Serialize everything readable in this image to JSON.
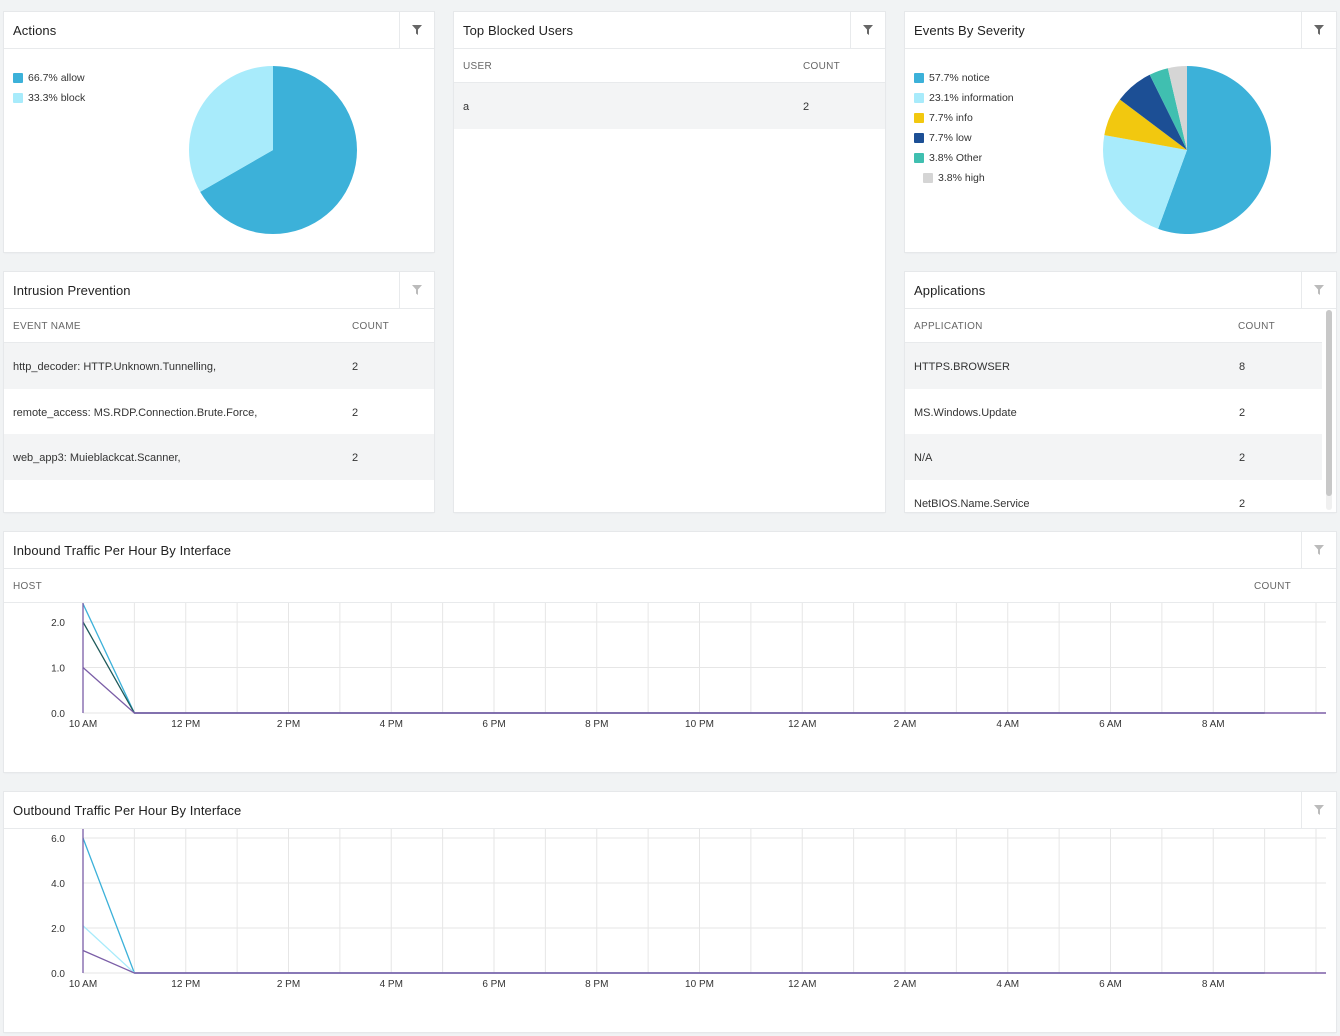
{
  "actions": {
    "title": "Actions",
    "legend": [
      {
        "label": "66.7% allow",
        "color": "#3cb1d9",
        "value": 66.7
      },
      {
        "label": "33.3% block",
        "color": "#a8ebfb",
        "value": 33.3
      }
    ]
  },
  "top_blocked_users": {
    "title": "Top Blocked Users",
    "columns": [
      "USER",
      "COUNT"
    ],
    "rows": [
      {
        "user": "a",
        "count": "2"
      }
    ]
  },
  "events_by_severity": {
    "title": "Events By Severity",
    "legend": [
      {
        "label": "57.7% notice",
        "color": "#3cb1d9",
        "value": 57.7
      },
      {
        "label": "23.1% information",
        "color": "#a8ebfb",
        "value": 23.1
      },
      {
        "label": "7.7% info",
        "color": "#f2c80f",
        "value": 7.7
      },
      {
        "label": "7.7% low",
        "color": "#1c4f95",
        "value": 7.7
      },
      {
        "label": "3.8% Other",
        "color": "#40bfb0",
        "value": 3.8
      },
      {
        "label": "3.8% high",
        "color": "#d5d5d5",
        "value": 3.8
      }
    ]
  },
  "intrusion_prevention": {
    "title": "Intrusion Prevention",
    "columns": [
      "EVENT NAME",
      "COUNT"
    ],
    "rows": [
      {
        "name": "http_decoder: HTTP.Unknown.Tunnelling,",
        "count": "2"
      },
      {
        "name": "remote_access: MS.RDP.Connection.Brute.Force,",
        "count": "2"
      },
      {
        "name": "web_app3: Muieblackcat.Scanner,",
        "count": "2"
      }
    ]
  },
  "applications": {
    "title": "Applications",
    "columns": [
      "APPLICATION",
      "COUNT"
    ],
    "rows": [
      {
        "name": "HTTPS.BROWSER",
        "count": "8"
      },
      {
        "name": "MS.Windows.Update",
        "count": "2"
      },
      {
        "name": "N/A",
        "count": "2"
      },
      {
        "name": "NetBIOS.Name.Service",
        "count": "2"
      }
    ]
  },
  "inbound": {
    "title": "Inbound Traffic Per Hour By Interface",
    "col_host": "HOST",
    "col_count": "COUNT"
  },
  "outbound": {
    "title": "Outbound Traffic Per Hour By Interface"
  },
  "chart_data": [
    {
      "type": "pie",
      "title": "Actions",
      "categories": [
        "allow",
        "block"
      ],
      "values": [
        66.7,
        33.3
      ],
      "colors": [
        "#3cb1d9",
        "#a8ebfb"
      ],
      "legend": "top-left"
    },
    {
      "type": "pie",
      "title": "Events By Severity",
      "categories": [
        "notice",
        "information",
        "info",
        "low",
        "Other",
        "high"
      ],
      "values": [
        57.7,
        23.1,
        7.7,
        7.7,
        3.8,
        3.8
      ],
      "colors": [
        "#3cb1d9",
        "#a8ebfb",
        "#f2c80f",
        "#1c4f95",
        "#40bfb0",
        "#d5d5d5"
      ],
      "legend": "top-left"
    },
    {
      "type": "line",
      "title": "Inbound Traffic Per Hour By Interface",
      "x": [
        "10 AM",
        "11 AM",
        "12 PM",
        "1 PM",
        "2 PM",
        "3 PM",
        "4 PM",
        "5 PM",
        "6 PM",
        "7 PM",
        "8 PM",
        "9 PM",
        "10 PM",
        "11 PM",
        "12 AM",
        "1 AM",
        "2 AM",
        "3 AM",
        "4 AM",
        "5 AM",
        "6 AM",
        "7 AM",
        "8 AM",
        "9 AM"
      ],
      "x_ticks": [
        "10 AM",
        "12 PM",
        "2 PM",
        "4 PM",
        "6 PM",
        "8 PM",
        "10 PM",
        "12 AM",
        "2 AM",
        "4 AM",
        "6 AM",
        "8 AM"
      ],
      "y_ticks": [
        "0.0",
        "1.0",
        "2.0"
      ],
      "ylim": [
        0,
        2.0
      ],
      "grid": true,
      "series": [
        {
          "color": "#3cb1d9",
          "values": [
            2.4,
            0,
            0,
            0,
            0,
            0,
            0,
            0,
            0,
            0,
            0,
            0,
            0,
            0,
            0,
            0,
            0,
            0,
            0,
            0,
            0,
            0,
            0,
            0
          ]
        },
        {
          "color": "#1f5a5a",
          "values": [
            2.0,
            0,
            0,
            0,
            0,
            0,
            0,
            0,
            0,
            0,
            0,
            0,
            0,
            0,
            0,
            0,
            0,
            0,
            0,
            0,
            0,
            0,
            0,
            0
          ]
        },
        {
          "color": "#7b5ea7",
          "values": [
            1.0,
            0,
            0,
            0,
            0,
            0,
            0,
            0,
            0,
            0,
            0,
            0,
            0,
            0,
            0,
            0,
            0,
            0,
            0,
            0,
            0,
            0,
            0,
            0
          ]
        }
      ]
    },
    {
      "type": "line",
      "title": "Outbound Traffic Per Hour By Interface",
      "x": [
        "10 AM",
        "11 AM",
        "12 PM",
        "1 PM",
        "2 PM",
        "3 PM",
        "4 PM",
        "5 PM",
        "6 PM",
        "7 PM",
        "8 PM",
        "9 PM",
        "10 PM",
        "11 PM",
        "12 AM",
        "1 AM",
        "2 AM",
        "3 AM",
        "4 AM",
        "5 AM",
        "6 AM",
        "7 AM",
        "8 AM",
        "9 AM"
      ],
      "x_ticks": [
        "10 AM",
        "12 PM",
        "2 PM",
        "4 PM",
        "6 PM",
        "8 PM",
        "10 PM",
        "12 AM",
        "2 AM",
        "4 AM",
        "6 AM",
        "8 AM"
      ],
      "y_ticks": [
        "0.0",
        "2.0",
        "4.0",
        "6.0"
      ],
      "ylim": [
        0,
        6.0
      ],
      "grid": true,
      "series": [
        {
          "color": "#3cb1d9",
          "values": [
            6.0,
            0,
            0,
            0,
            0,
            0,
            0,
            0,
            0,
            0,
            0,
            0,
            0,
            0,
            0,
            0,
            0,
            0,
            0,
            0,
            0,
            0,
            0,
            0
          ]
        },
        {
          "color": "#a8ebfb",
          "values": [
            2.1,
            0,
            0,
            0,
            0,
            0,
            0,
            0,
            0,
            0,
            0,
            0,
            0,
            0,
            0,
            0,
            0,
            0,
            0,
            0,
            0,
            0,
            0,
            0
          ]
        },
        {
          "color": "#7b5ea7",
          "values": [
            1.0,
            0,
            0,
            0,
            0,
            0,
            0,
            0,
            0,
            0,
            0,
            0,
            0,
            0,
            0,
            0,
            0,
            0,
            0,
            0,
            0,
            0,
            0,
            0
          ]
        }
      ]
    }
  ]
}
